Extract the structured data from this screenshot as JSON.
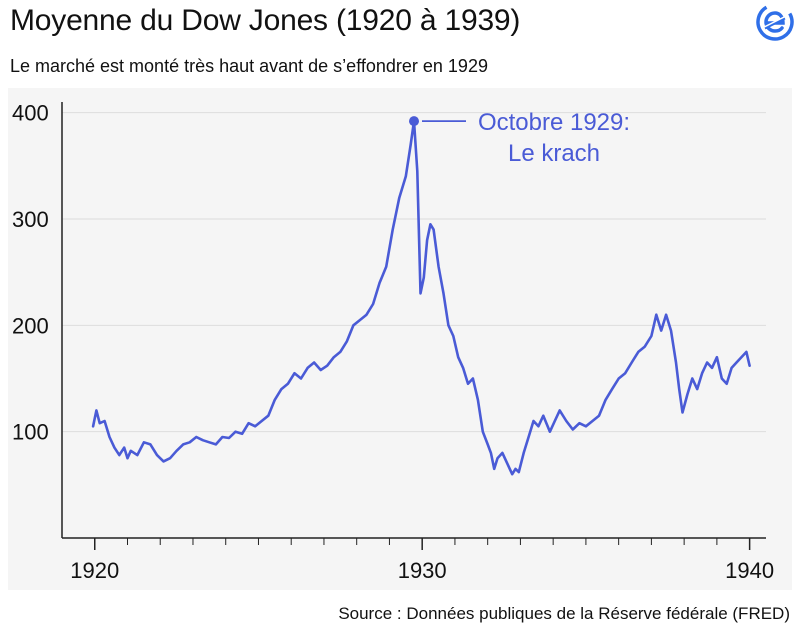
{
  "header": {
    "title": "Moyenne du Dow Jones (1920 à 1939)",
    "subtitle": "Le marché est monté très haut avant de s’effondrer en 1929"
  },
  "logo": {
    "icon": "euronews-e-logo-icon",
    "color": "#2f6fe8"
  },
  "footer": {
    "source": "Source : Données publiques de la Réserve fédérale (FRED)"
  },
  "colors": {
    "line": "#4a5bd6",
    "annotation": "#4a5bd6",
    "grid": "#dcdcdc",
    "axis": "#222222",
    "background": "#f5f5f5"
  },
  "chart_data": {
    "type": "line",
    "title": "Moyenne du Dow Jones (1920 à 1939)",
    "subtitle": "Le marché est monté très haut avant de s’effondrer en 1929",
    "xlabel": "",
    "ylabel": "",
    "xlim": [
      1919,
      1940.5
    ],
    "ylim": [
      0,
      410
    ],
    "grid": "horizontal",
    "x_ticks": [
      1920,
      1930,
      1940
    ],
    "y_ticks": [
      100,
      200,
      300,
      400
    ],
    "annotation": {
      "line1": "Octobre 1929:",
      "line2": "Le krach",
      "x": 1929.75,
      "y": 392
    },
    "series": [
      {
        "values": [
          [
            1919.95,
            105
          ],
          [
            1920.05,
            120
          ],
          [
            1920.15,
            108
          ],
          [
            1920.3,
            110
          ],
          [
            1920.45,
            95
          ],
          [
            1920.6,
            85
          ],
          [
            1920.75,
            78
          ],
          [
            1920.9,
            85
          ],
          [
            1921.0,
            75
          ],
          [
            1921.1,
            82
          ],
          [
            1921.3,
            78
          ],
          [
            1921.5,
            90
          ],
          [
            1921.7,
            88
          ],
          [
            1921.9,
            78
          ],
          [
            1922.1,
            72
          ],
          [
            1922.3,
            75
          ],
          [
            1922.5,
            82
          ],
          [
            1922.7,
            88
          ],
          [
            1922.9,
            90
          ],
          [
            1923.1,
            95
          ],
          [
            1923.3,
            92
          ],
          [
            1923.5,
            90
          ],
          [
            1923.7,
            88
          ],
          [
            1923.9,
            95
          ],
          [
            1924.1,
            94
          ],
          [
            1924.3,
            100
          ],
          [
            1924.5,
            98
          ],
          [
            1924.7,
            108
          ],
          [
            1924.9,
            105
          ],
          [
            1925.1,
            110
          ],
          [
            1925.3,
            115
          ],
          [
            1925.5,
            130
          ],
          [
            1925.7,
            140
          ],
          [
            1925.9,
            145
          ],
          [
            1926.1,
            155
          ],
          [
            1926.3,
            150
          ],
          [
            1926.5,
            160
          ],
          [
            1926.7,
            165
          ],
          [
            1926.9,
            158
          ],
          [
            1927.1,
            162
          ],
          [
            1927.3,
            170
          ],
          [
            1927.5,
            175
          ],
          [
            1927.7,
            185
          ],
          [
            1927.9,
            200
          ],
          [
            1928.1,
            205
          ],
          [
            1928.3,
            210
          ],
          [
            1928.5,
            220
          ],
          [
            1928.7,
            240
          ],
          [
            1928.9,
            255
          ],
          [
            1929.1,
            290
          ],
          [
            1929.3,
            320
          ],
          [
            1929.5,
            340
          ],
          [
            1929.65,
            370
          ],
          [
            1929.75,
            392
          ],
          [
            1929.85,
            345
          ],
          [
            1929.95,
            230
          ],
          [
            1930.05,
            245
          ],
          [
            1930.15,
            280
          ],
          [
            1930.25,
            295
          ],
          [
            1930.35,
            290
          ],
          [
            1930.5,
            255
          ],
          [
            1930.65,
            230
          ],
          [
            1930.8,
            200
          ],
          [
            1930.95,
            190
          ],
          [
            1931.1,
            170
          ],
          [
            1931.25,
            160
          ],
          [
            1931.4,
            145
          ],
          [
            1931.55,
            150
          ],
          [
            1931.7,
            130
          ],
          [
            1931.85,
            100
          ],
          [
            1932.0,
            88
          ],
          [
            1932.1,
            80
          ],
          [
            1932.2,
            65
          ],
          [
            1932.3,
            75
          ],
          [
            1932.45,
            80
          ],
          [
            1932.6,
            70
          ],
          [
            1932.75,
            60
          ],
          [
            1932.85,
            65
          ],
          [
            1932.95,
            62
          ],
          [
            1933.1,
            80
          ],
          [
            1933.25,
            95
          ],
          [
            1933.4,
            110
          ],
          [
            1933.55,
            105
          ],
          [
            1933.7,
            115
          ],
          [
            1933.9,
            100
          ],
          [
            1934.05,
            110
          ],
          [
            1934.2,
            120
          ],
          [
            1934.4,
            110
          ],
          [
            1934.6,
            102
          ],
          [
            1934.8,
            108
          ],
          [
            1935.0,
            105
          ],
          [
            1935.2,
            110
          ],
          [
            1935.4,
            115
          ],
          [
            1935.6,
            130
          ],
          [
            1935.8,
            140
          ],
          [
            1936.0,
            150
          ],
          [
            1936.2,
            155
          ],
          [
            1936.4,
            165
          ],
          [
            1936.6,
            175
          ],
          [
            1936.8,
            180
          ],
          [
            1937.0,
            190
          ],
          [
            1937.15,
            210
          ],
          [
            1937.3,
            195
          ],
          [
            1937.45,
            210
          ],
          [
            1937.6,
            195
          ],
          [
            1937.75,
            165
          ],
          [
            1937.85,
            140
          ],
          [
            1937.95,
            118
          ],
          [
            1938.1,
            135
          ],
          [
            1938.25,
            150
          ],
          [
            1938.4,
            140
          ],
          [
            1938.55,
            155
          ],
          [
            1938.7,
            165
          ],
          [
            1938.85,
            160
          ],
          [
            1939.0,
            170
          ],
          [
            1939.15,
            150
          ],
          [
            1939.3,
            145
          ],
          [
            1939.45,
            160
          ],
          [
            1939.6,
            165
          ],
          [
            1939.75,
            170
          ],
          [
            1939.9,
            175
          ],
          [
            1940.0,
            162
          ]
        ]
      }
    ]
  }
}
